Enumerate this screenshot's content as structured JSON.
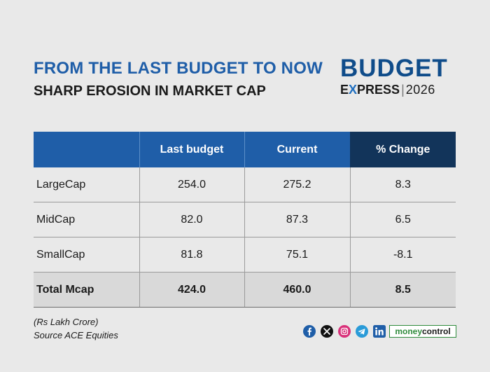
{
  "header": {
    "title": "FROM THE LAST BUDGET TO NOW",
    "subtitle": "SHARP EROSION IN MARKET CAP"
  },
  "brand": {
    "line1": "BUDGET",
    "e": "E",
    "x": "X",
    "rest": "PRESS",
    "sep": "|",
    "year": "2026"
  },
  "chart_data": {
    "type": "table",
    "columns": [
      "",
      "Last budget",
      "Current",
      "% Change"
    ],
    "rows": [
      {
        "label": "LargeCap",
        "last_budget": "254.0",
        "current": "275.2",
        "change": "8.3"
      },
      {
        "label": "MidCap",
        "last_budget": "82.0",
        "current": "87.3",
        "change": "6.5"
      },
      {
        "label": "SmallCap",
        "last_budget": "81.8",
        "current": "75.1",
        "change": "-8.1"
      },
      {
        "label": "Total Mcap",
        "last_budget": "424.0",
        "current": "460.0",
        "change": "8.5"
      }
    ]
  },
  "footer": {
    "unit_note": "(Rs Lakh Crore)",
    "source": "Source ACE Equities",
    "social_icons": [
      "facebook-icon",
      "x-icon",
      "instagram-icon",
      "telegram-icon",
      "linkedin-icon"
    ],
    "logo_money": "money",
    "logo_control": "control"
  },
  "colors": {
    "background": "#e9e9e9",
    "header_blue": "#1f5ea8",
    "header_dark": "#12345a",
    "total_row": "#d9d9d9",
    "moneycontrol_green": "#2f8b3c"
  }
}
